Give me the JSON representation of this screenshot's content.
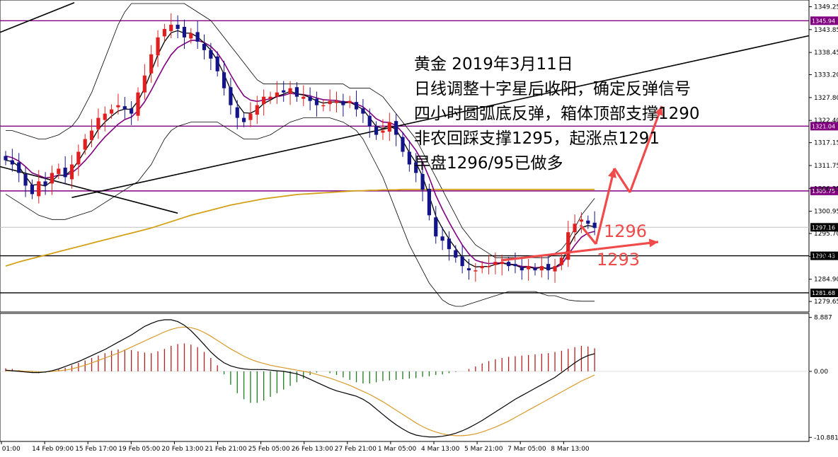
{
  "chart_data": {
    "type": "candlestick",
    "instrument": "黄金",
    "annotation_lines": [
      "黄金 2019年3月11日",
      "日线调整十字星后收阳，确定反弹信号",
      "四小时圆弧底反弹，箱体顶部支撑1290",
      "非农回踩支撑1295，起涨点1291",
      "早盘1296/95已做多"
    ],
    "target_labels": [
      "1296",
      "1293"
    ],
    "y_ticks": [
      "1349.25",
      "1343.85",
      "1338.45",
      "1333.20",
      "1327.80",
      "1322.40",
      "1317.15",
      "1311.75",
      "1306.35",
      "1300.95",
      "1295.70",
      "1290.30",
      "1284.90",
      "1279.65"
    ],
    "ylim": [
      1277.5,
      1350.5
    ],
    "x_ticks": [
      "Feb 01:00",
      "14 Feb 09:00",
      "15 Feb 17:00",
      "19 Feb 05:00",
      "20 Feb 13:00",
      "21 Feb 21:00",
      "25 Feb 05:00",
      "26 Feb 13:00",
      "27 Feb 21:00",
      "1 Mar 05:00",
      "4 Mar 13:00",
      "5 Mar 21:00",
      "7 Mar 05:00",
      "8 Mar 13:00"
    ],
    "horizontal_levels": [
      {
        "value": 1345.94,
        "label": "1345.94",
        "color": "#800080"
      },
      {
        "value": 1321.04,
        "label": "1321.04",
        "color": "#800080"
      },
      {
        "value": 1305.75,
        "label": "1305.75",
        "color": "#800080"
      },
      {
        "value": 1290.43,
        "label": "1290.43",
        "color": "#000000"
      },
      {
        "value": 1281.68,
        "label": "1281.68",
        "color": "#000000"
      }
    ],
    "current_price": {
      "value": 1297.16,
      "label": "1297.16"
    },
    "close": [
      1313,
      1312,
      1310,
      1307,
      1305,
      1308,
      1307,
      1310,
      1311,
      1309,
      1312,
      1315,
      1318,
      1320,
      1323,
      1324,
      1325,
      1326,
      1325,
      1324,
      1329,
      1333,
      1338,
      1342,
      1344,
      1345,
      1344,
      1342,
      1343,
      1341,
      1339,
      1337,
      1334,
      1330,
      1326,
      1323,
      1322,
      1324,
      1326,
      1328,
      1328,
      1329,
      1329,
      1330,
      1328,
      1328,
      1327,
      1326,
      1326,
      1327,
      1327,
      1326,
      1327,
      1325,
      1324,
      1321,
      1319,
      1320,
      1322,
      1319,
      1315,
      1312,
      1310,
      1306,
      1300,
      1295,
      1294,
      1292,
      1290,
      1288,
      1287,
      1287,
      1288,
      1288,
      1289,
      1289,
      1288,
      1288,
      1287,
      1288,
      1287,
      1288,
      1287,
      1288,
      1290,
      1296,
      1298,
      1299,
      1298,
      1297
    ],
    "ma_fast": [
      1313,
      1312.7,
      1311.5,
      1309.2,
      1307.1,
      1307.3,
      1306.9,
      1308.1,
      1309.5,
      1309.4,
      1310.7,
      1312.8,
      1315.3,
      1317.6,
      1320.3,
      1322,
      1323.4,
      1324.6,
      1325.1,
      1325,
      1327,
      1330,
      1333.9,
      1337.9,
      1341,
      1343.1,
      1343.6,
      1343,
      1343,
      1342.1,
      1340.7,
      1339,
      1336.5,
      1333.3,
      1329.6,
      1326.3,
      1324.2,
      1324.1,
      1324.9,
      1326.4,
      1327.2,
      1328.1,
      1328.6,
      1329.3,
      1328.7,
      1328.4,
      1327.8,
      1327,
      1326.5,
      1326.7,
      1326.8,
      1326.5,
      1326.7,
      1325.9,
      1325,
      1323,
      1321,
      1320.5,
      1321.2,
      1320.2,
      1317.6,
      1314.8,
      1312.4,
      1309.2,
      1304.6,
      1299.8,
      1296.9,
      1294.4,
      1292.2,
      1290.1,
      1288.6,
      1287.8,
      1287.9,
      1287.9,
      1288.4,
      1288.7,
      1288.4,
      1288.2,
      1287.6,
      1287.8,
      1287.4,
      1287.7,
      1287.3,
      1287.7,
      1288.8,
      1292.4,
      1295.2,
      1297.1,
      1297.6,
      1297.3
    ],
    "ma_slow": [
      1314,
      1313.6,
      1312.8,
      1311.5,
      1310,
      1309.4,
      1308.8,
      1309,
      1309.5,
      1309.4,
      1310,
      1311.3,
      1312.9,
      1314.7,
      1316.7,
      1318.5,
      1320,
      1321.5,
      1322.6,
      1323.2,
      1324.7,
      1326.8,
      1329.5,
      1332.5,
      1335.4,
      1337.9,
      1339.6,
      1340.5,
      1341.3,
      1341.3,
      1340.8,
      1339.9,
      1338.3,
      1336,
      1333.2,
      1330.5,
      1328.2,
      1327.2,
      1326.9,
      1327.2,
      1327.5,
      1328,
      1328.3,
      1328.8,
      1328.6,
      1328.5,
      1328.2,
      1327.7,
      1327.3,
      1327.2,
      1327.1,
      1326.8,
      1326.8,
      1326.3,
      1325.6,
      1324.3,
      1322.8,
      1322,
      1321.9,
      1321.2,
      1319.5,
      1317.4,
      1315.3,
      1312.6,
      1308.9,
      1304.7,
      1301.4,
      1298.4,
      1295.6,
      1293,
      1290.9,
      1289.4,
      1288.9,
      1288.6,
      1288.7,
      1288.8,
      1288.5,
      1288.3,
      1287.9,
      1287.9,
      1287.6,
      1287.7,
      1287.4,
      1287.6,
      1288.3,
      1290.7,
      1292.9,
      1294.8,
      1295.8,
      1296.2
    ],
    "ma_long": [
      1288,
      1288.5,
      1289,
      1289.4,
      1289.8,
      1290.2,
      1290.6,
      1291,
      1291.4,
      1291.8,
      1292.2,
      1292.6,
      1293,
      1293.4,
      1293.8,
      1294.2,
      1294.6,
      1295,
      1295.4,
      1295.8,
      1296.2,
      1296.6,
      1297,
      1297.5,
      1298,
      1298.5,
      1299,
      1299.5,
      1300,
      1300.4,
      1300.8,
      1301.2,
      1301.6,
      1302,
      1302.4,
      1302.7,
      1303,
      1303.3,
      1303.6,
      1303.9,
      1304.1,
      1304.3,
      1304.5,
      1304.7,
      1304.9,
      1305,
      1305.1,
      1305.2,
      1305.3,
      1305.4,
      1305.5,
      1305.6,
      1305.7,
      1305.8,
      1305.8,
      1305.9,
      1305.9,
      1306,
      1306,
      1306,
      1306.1,
      1306.1,
      1306.1,
      1306.1,
      1306.1,
      1306.1,
      1306.1,
      1306.1,
      1306.1,
      1306.1,
      1306.1,
      1306.1,
      1306.1,
      1306.1,
      1306.1,
      1306.1,
      1306.1,
      1306.1,
      1306.1,
      1306.1,
      1306.1,
      1306.1,
      1306.1,
      1306.1,
      1306.1,
      1306.1,
      1306.1,
      1306.1,
      1306.1,
      1306.1
    ],
    "bb_upper": [
      1320,
      1320,
      1319.5,
      1319,
      1318.5,
      1318,
      1318,
      1318.5,
      1319,
      1320,
      1321,
      1323,
      1326,
      1329,
      1333,
      1337,
      1341,
      1345,
      1348,
      1350,
      1350,
      1350,
      1350,
      1350,
      1350,
      1350,
      1350,
      1350,
      1349,
      1348,
      1347,
      1346,
      1344,
      1342,
      1340,
      1338,
      1336,
      1334,
      1332,
      1331,
      1331,
      1331,
      1331,
      1331,
      1331,
      1331,
      1331,
      1331,
      1331,
      1331,
      1331,
      1331,
      1330,
      1330,
      1330,
      1330,
      1329,
      1328,
      1326,
      1324,
      1322,
      1320,
      1318,
      1315,
      1312,
      1309,
      1306,
      1303,
      1300,
      1297,
      1295,
      1293,
      1292,
      1291,
      1290,
      1290,
      1290,
      1290,
      1290,
      1290,
      1290,
      1290,
      1290,
      1291,
      1292,
      1294,
      1297,
      1300,
      1302,
      1304
    ],
    "bb_lower": [
      1305,
      1304,
      1303,
      1302,
      1301,
      1300,
      1299.5,
      1299,
      1299,
      1299,
      1299.5,
      1300,
      1300.5,
      1301,
      1302,
      1303,
      1304,
      1305,
      1306,
      1307,
      1308,
      1310,
      1312,
      1315,
      1318,
      1320,
      1321,
      1321.5,
      1322,
      1322,
      1322,
      1322,
      1322,
      1321,
      1320,
      1319,
      1318,
      1318,
      1318,
      1318.5,
      1319,
      1320,
      1321,
      1322,
      1322.5,
      1323,
      1323,
      1323,
      1323,
      1323,
      1322.5,
      1322,
      1321,
      1320,
      1318,
      1315,
      1312,
      1309,
      1305,
      1301,
      1297,
      1293,
      1290,
      1287,
      1284,
      1282,
      1280,
      1279,
      1278.5,
      1278.5,
      1279,
      1279.5,
      1280,
      1280.5,
      1281,
      1281.5,
      1282,
      1282,
      1282,
      1282,
      1282,
      1281.5,
      1281,
      1281,
      1280.5,
      1280,
      1279.8,
      1279.7,
      1279.7,
      1279.7
    ],
    "macd": {
      "y_ticks": [
        "8.887",
        "0.00",
        "-10.881"
      ],
      "ylim": [
        -11.2,
        9.2
      ],
      "histogram": [
        0.5,
        0.4,
        0.2,
        0,
        -0.2,
        -0.3,
        -0.2,
        0,
        0.3,
        0.6,
        1.0,
        1.4,
        1.8,
        2.2,
        2.6,
        3.0,
        3.4,
        3.6,
        3.6,
        3.5,
        3.3,
        3.1,
        3.0,
        3.3,
        3.7,
        4.2,
        4.5,
        4.6,
        4.4,
        4.0,
        3.2,
        2.2,
        1.0,
        -0.5,
        -2.2,
        -3.6,
        -4.6,
        -5.2,
        -5.2,
        -4.8,
        -4.2,
        -3.6,
        -3.0,
        -2.4,
        -1.8,
        -1.2,
        -0.6,
        -0.2,
        0,
        -0.3,
        -0.6,
        -1.0,
        -1.4,
        -1.8,
        -2.0,
        -2.0,
        -1.8,
        -1.6,
        -1.5,
        -1.4,
        -1.3,
        -1.2,
        -1.1,
        -0.9,
        -0.8,
        -0.6,
        -0.5,
        -0.3,
        -0.1,
        0,
        0.4,
        0.8,
        1.3,
        1.7,
        2.0,
        2.2,
        2.4,
        2.5,
        2.6,
        2.7,
        2.8,
        2.9,
        3.0,
        3.2,
        3.4,
        3.7,
        4.0,
        4.2,
        4.1,
        3.8
      ],
      "main_line": [
        0.2,
        0.1,
        0,
        -0.1,
        -0.2,
        -0.2,
        -0.1,
        0.1,
        0.4,
        0.8,
        1.2,
        1.6,
        2.1,
        2.6,
        3.1,
        3.6,
        4.2,
        4.8,
        5.4,
        6.0,
        6.7,
        7.4,
        7.9,
        8.3,
        8.5,
        8.5,
        8.2,
        7.6,
        6.7,
        5.6,
        4.4,
        3.2,
        2.2,
        1.4,
        0.9,
        0.6,
        0.4,
        0.3,
        0.3,
        0.3,
        0.2,
        0.1,
        0,
        -0.2,
        -0.4,
        -0.8,
        -1.3,
        -1.8,
        -2.3,
        -2.8,
        -3.2,
        -3.5,
        -3.8,
        -4.1,
        -4.6,
        -5.3,
        -6.2,
        -7.1,
        -8.0,
        -8.8,
        -9.5,
        -10.1,
        -10.5,
        -10.7,
        -10.8,
        -10.8,
        -10.7,
        -10.5,
        -10.2,
        -9.8,
        -9.3,
        -8.7,
        -8.1,
        -7.4,
        -6.7,
        -6.0,
        -5.3,
        -4.6,
        -4.0,
        -3.4,
        -2.8,
        -2.2,
        -1.6,
        -1.0,
        -0.2,
        0.6,
        1.4,
        2.1,
        2.6,
        2.9
      ],
      "signal_line": [
        0.1,
        0.1,
        0.1,
        0,
        0,
        -0.1,
        -0.1,
        0,
        0.1,
        0.2,
        0.4,
        0.7,
        1.0,
        1.4,
        1.8,
        2.2,
        2.6,
        3.0,
        3.5,
        4.0,
        4.5,
        5.0,
        5.5,
        6.0,
        6.5,
        6.9,
        7.2,
        7.3,
        7.2,
        6.9,
        6.4,
        5.8,
        5.1,
        4.4,
        3.7,
        3.1,
        2.5,
        2.0,
        1.6,
        1.3,
        1.0,
        0.8,
        0.6,
        0.4,
        0.2,
        0,
        -0.2,
        -0.5,
        -0.8,
        -1.1,
        -1.5,
        -1.9,
        -2.3,
        -2.8,
        -3.3,
        -3.8,
        -4.4,
        -5.0,
        -5.7,
        -6.4,
        -7.1,
        -7.8,
        -8.5,
        -9.1,
        -9.6,
        -10.0,
        -10.3,
        -10.5,
        -10.6,
        -10.6,
        -10.5,
        -10.3,
        -10.0,
        -9.6,
        -9.2,
        -8.7,
        -8.2,
        -7.6,
        -7.0,
        -6.4,
        -5.8,
        -5.2,
        -4.6,
        -4.0,
        -3.4,
        -2.8,
        -2.2,
        -1.6,
        -1.1,
        -0.6
      ]
    }
  },
  "colors": {
    "bull_candle": "#e02020",
    "bear_candle": "#14148a",
    "ma_fast": "#000000",
    "ma_slow": "#800080",
    "ma_long": "#d4a017",
    "bb": "#000000",
    "hist_pos": "#b22222",
    "hist_neg": "#1e7b1e",
    "annotation_red": "#f04a4a",
    "level_purple": "#800080",
    "level_black": "#000000"
  }
}
